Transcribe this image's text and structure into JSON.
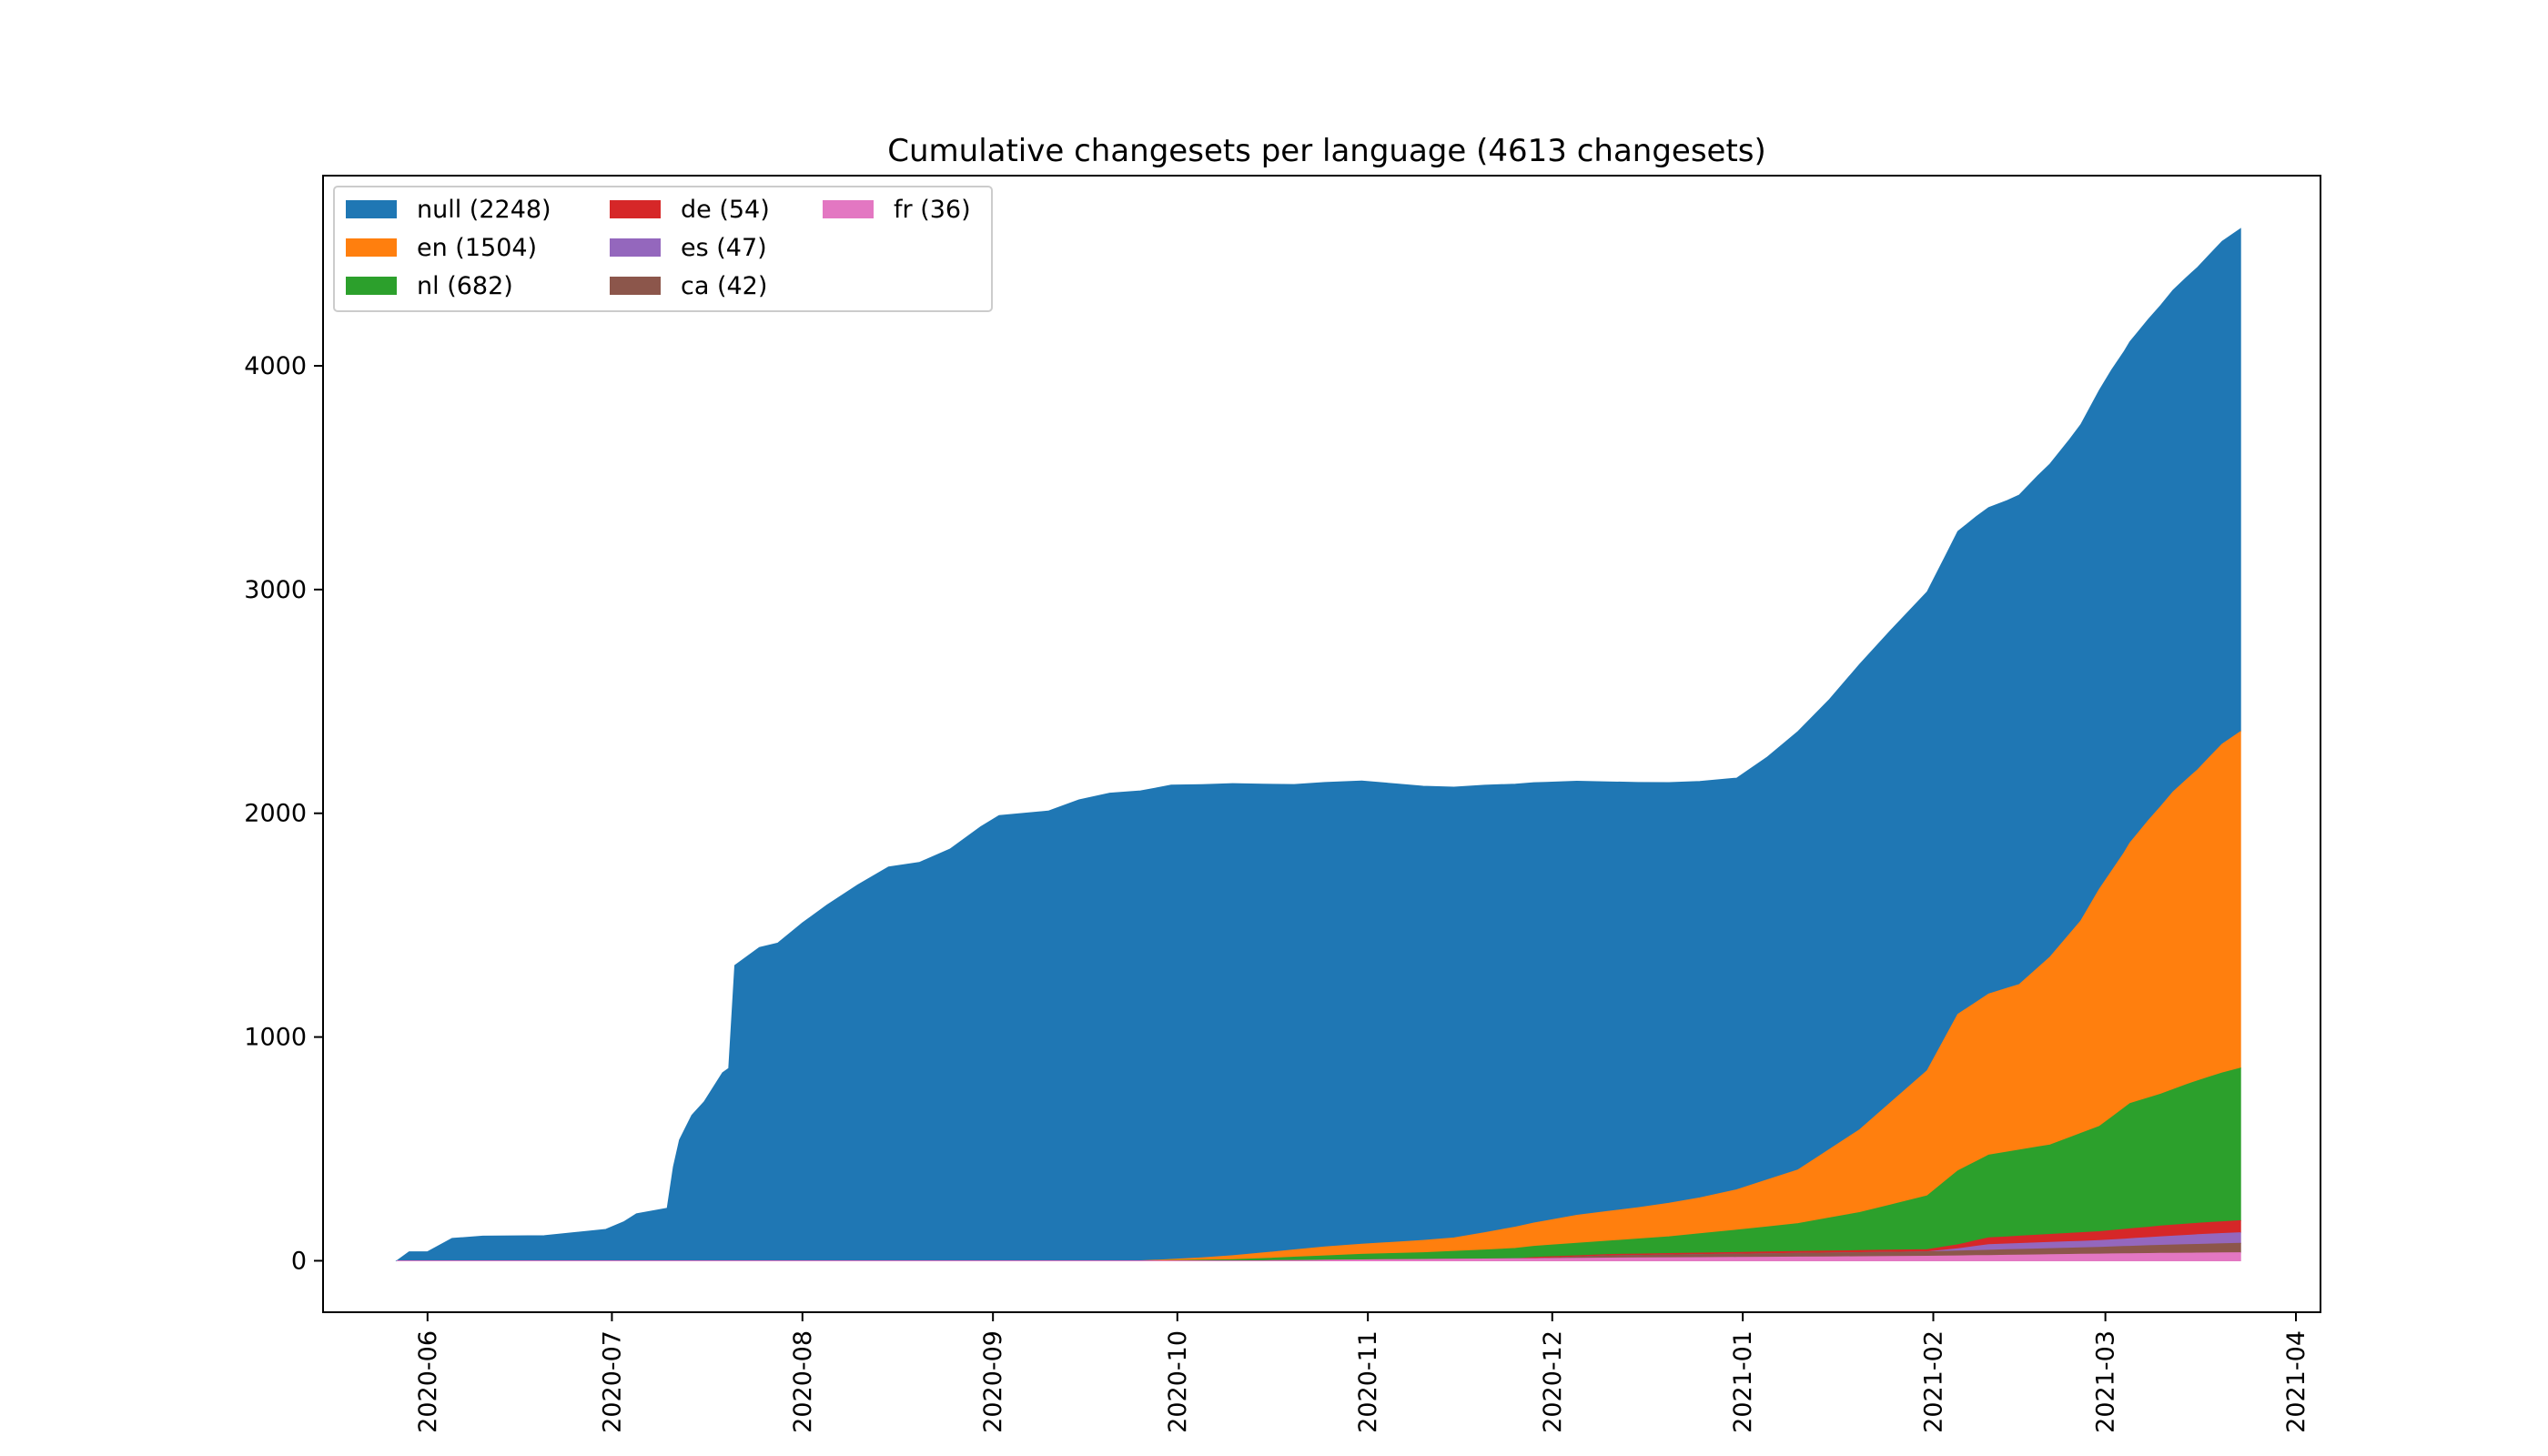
{
  "chart_data": {
    "type": "area",
    "stacked": true,
    "cumulative": true,
    "title": "Cumulative changesets per language (4613 changesets)",
    "xlabel": "",
    "ylabel": "",
    "x_axis": "date",
    "xlim": [
      "2020-05-15",
      "2021-04-05"
    ],
    "ylim": [
      -230,
      4850
    ],
    "x_ticks": [
      "2020-06",
      "2020-07",
      "2020-08",
      "2020-09",
      "2020-10",
      "2020-11",
      "2020-12",
      "2021-01",
      "2021-02",
      "2021-03",
      "2021-04"
    ],
    "y_ticks": [
      0,
      1000,
      2000,
      3000,
      4000
    ],
    "grid": false,
    "legend": {
      "position": "top-left",
      "columns": 3
    },
    "series": [
      {
        "name": "null (2248)",
        "color": "#1f77b4",
        "points": [
          [
            "2020-05-27",
            0
          ],
          [
            "2020-05-29",
            40
          ],
          [
            "2020-06-01",
            40
          ],
          [
            "2020-06-05",
            100
          ],
          [
            "2020-06-10",
            110
          ],
          [
            "2020-06-20",
            112
          ],
          [
            "2020-06-30",
            140
          ],
          [
            "2020-07-03",
            175
          ],
          [
            "2020-07-05",
            210
          ],
          [
            "2020-07-10",
            235
          ],
          [
            "2020-07-11",
            420
          ],
          [
            "2020-07-12",
            540
          ],
          [
            "2020-07-14",
            650
          ],
          [
            "2020-07-16",
            710
          ],
          [
            "2020-07-19",
            840
          ],
          [
            "2020-07-20",
            860
          ],
          [
            "2020-07-21",
            1320
          ],
          [
            "2020-07-25",
            1400
          ],
          [
            "2020-07-28",
            1420
          ],
          [
            "2020-08-01",
            1510
          ],
          [
            "2020-08-05",
            1590
          ],
          [
            "2020-08-10",
            1680
          ],
          [
            "2020-08-15",
            1760
          ],
          [
            "2020-08-20",
            1780
          ],
          [
            "2020-08-25",
            1840
          ],
          [
            "2020-08-30",
            1940
          ],
          [
            "2020-09-02",
            1990
          ],
          [
            "2020-09-10",
            2010
          ],
          [
            "2020-09-15",
            2060
          ],
          [
            "2020-09-20",
            2090
          ],
          [
            "2020-09-25",
            2100
          ],
          [
            "2020-09-30",
            2120
          ],
          [
            "2020-10-10",
            2110
          ],
          [
            "2020-10-20",
            2080
          ],
          [
            "2020-10-31",
            2070
          ],
          [
            "2020-11-10",
            2030
          ],
          [
            "2020-11-20",
            2000
          ],
          [
            "2020-11-30",
            1960
          ],
          [
            "2020-12-10",
            1920
          ],
          [
            "2020-12-20",
            1880
          ],
          [
            "2020-12-31",
            1840
          ],
          [
            "2021-01-05",
            1890
          ],
          [
            "2021-01-10",
            1960
          ],
          [
            "2021-01-15",
            2010
          ],
          [
            "2021-01-20",
            2080
          ],
          [
            "2021-01-25",
            2110
          ],
          [
            "2021-01-31",
            2140
          ],
          [
            "2021-02-03",
            2150
          ],
          [
            "2021-02-08",
            2170
          ],
          [
            "2021-02-13",
            2180
          ],
          [
            "2021-02-18",
            2200
          ],
          [
            "2021-02-23",
            2210
          ],
          [
            "2021-02-28",
            2230
          ],
          [
            "2021-03-02",
            2240
          ],
          [
            "2021-03-06",
            2240
          ],
          [
            "2021-03-10",
            2240
          ],
          [
            "2021-03-14",
            2245
          ],
          [
            "2021-03-18",
            2246
          ],
          [
            "2021-03-20",
            2247
          ],
          [
            "2021-03-23",
            2248
          ]
        ]
      },
      {
        "name": "en (1504)",
        "color": "#ff7f0e",
        "points": [
          [
            "2020-09-25",
            0
          ],
          [
            "2020-10-05",
            10
          ],
          [
            "2020-10-15",
            25
          ],
          [
            "2020-10-25",
            40
          ],
          [
            "2020-11-05",
            50
          ],
          [
            "2020-11-15",
            60
          ],
          [
            "2020-11-25",
            95
          ],
          [
            "2020-12-05",
            125
          ],
          [
            "2020-12-15",
            140
          ],
          [
            "2020-12-25",
            160
          ],
          [
            "2020-12-31",
            180
          ],
          [
            "2021-01-10",
            240
          ],
          [
            "2021-01-20",
            370
          ],
          [
            "2021-01-31",
            560
          ],
          [
            "2021-02-05",
            700
          ],
          [
            "2021-02-10",
            720
          ],
          [
            "2021-02-15",
            740
          ],
          [
            "2021-02-20",
            840
          ],
          [
            "2021-02-25",
            950
          ],
          [
            "2021-02-28",
            1060
          ],
          [
            "2021-03-04",
            1140
          ],
          [
            "2021-03-08",
            1240
          ],
          [
            "2021-03-12",
            1330
          ],
          [
            "2021-03-16",
            1390
          ],
          [
            "2021-03-20",
            1470
          ],
          [
            "2021-03-23",
            1504
          ]
        ]
      },
      {
        "name": "nl (682)",
        "color": "#2ca02c",
        "points": [
          [
            "2020-09-28",
            0
          ],
          [
            "2020-10-10",
            5
          ],
          [
            "2020-10-20",
            15
          ],
          [
            "2020-10-31",
            25
          ],
          [
            "2020-11-10",
            30
          ],
          [
            "2020-11-20",
            40
          ],
          [
            "2020-11-28",
            50
          ],
          [
            "2020-12-10",
            60
          ],
          [
            "2020-12-20",
            75
          ],
          [
            "2020-12-31",
            100
          ],
          [
            "2021-01-10",
            125
          ],
          [
            "2021-01-20",
            170
          ],
          [
            "2021-01-31",
            240
          ],
          [
            "2021-02-05",
            330
          ],
          [
            "2021-02-10",
            370
          ],
          [
            "2021-02-20",
            400
          ],
          [
            "2021-02-28",
            470
          ],
          [
            "2021-03-05",
            560
          ],
          [
            "2021-03-10",
            590
          ],
          [
            "2021-03-15",
            630
          ],
          [
            "2021-03-20",
            665
          ],
          [
            "2021-03-23",
            682
          ]
        ]
      },
      {
        "name": "de (54)",
        "color": "#d62728",
        "points": [
          [
            "2020-11-25",
            0
          ],
          [
            "2020-11-28",
            5
          ],
          [
            "2020-12-31",
            7
          ],
          [
            "2021-01-31",
            10
          ],
          [
            "2021-02-05",
            18
          ],
          [
            "2021-02-10",
            30
          ],
          [
            "2021-02-28",
            40
          ],
          [
            "2021-03-10",
            48
          ],
          [
            "2021-03-23",
            54
          ]
        ]
      },
      {
        "name": "es (47)",
        "color": "#9467bd",
        "points": [
          [
            "2021-01-31",
            0
          ],
          [
            "2021-02-05",
            10
          ],
          [
            "2021-02-10",
            25
          ],
          [
            "2021-02-28",
            30
          ],
          [
            "2021-03-10",
            38
          ],
          [
            "2021-03-18",
            45
          ],
          [
            "2021-03-23",
            47
          ]
        ]
      },
      {
        "name": "ca (42)",
        "color": "#8c564b",
        "points": [
          [
            "2020-11-28",
            0
          ],
          [
            "2020-12-10",
            10
          ],
          [
            "2020-12-31",
            15
          ],
          [
            "2021-01-31",
            20
          ],
          [
            "2021-02-28",
            30
          ],
          [
            "2021-03-10",
            36
          ],
          [
            "2021-03-23",
            42
          ]
        ]
      },
      {
        "name": "fr (36)",
        "color": "#e377c2",
        "points": [
          [
            "2020-10-15",
            0
          ],
          [
            "2020-11-05",
            5
          ],
          [
            "2020-12-10",
            12
          ],
          [
            "2020-12-31",
            15
          ],
          [
            "2021-01-31",
            20
          ],
          [
            "2021-02-28",
            30
          ],
          [
            "2021-03-10",
            33
          ],
          [
            "2021-03-23",
            36
          ]
        ]
      }
    ]
  }
}
